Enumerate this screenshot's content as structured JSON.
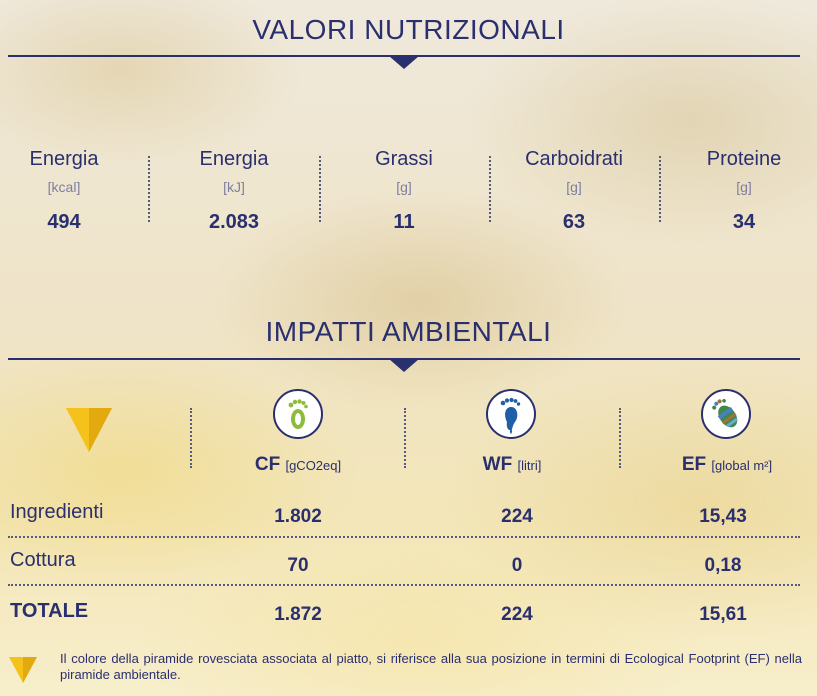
{
  "nutrition": {
    "title": "VALORI NUTRIZIONALI",
    "items": [
      {
        "label": "Energia",
        "unit": "[kcal]",
        "value": "494"
      },
      {
        "label": "Energia",
        "unit": "[kJ]",
        "value": "2.083"
      },
      {
        "label": "Grassi",
        "unit": "[g]",
        "value": "11"
      },
      {
        "label": "Carboidrati",
        "unit": "[g]",
        "value": "63"
      },
      {
        "label": "Proteine",
        "unit": "[g]",
        "value": "34"
      }
    ]
  },
  "impact": {
    "title": "IMPATTI AMBIENTALI",
    "pyramid_color": "#f5c21b",
    "columns": [
      {
        "abbr": "CF",
        "unit": "[gCO2eq]",
        "icon": "carbon-footprint-icon"
      },
      {
        "abbr": "WF",
        "unit": "[litri]",
        "icon": "water-footprint-icon"
      },
      {
        "abbr": "EF",
        "unit": "[global m²]",
        "icon": "ecological-footprint-icon"
      }
    ],
    "rows": [
      {
        "label": "Ingredienti",
        "values": [
          "1.802",
          "224",
          "15,43"
        ]
      },
      {
        "label": "Cottura",
        "values": [
          "70",
          "0",
          "0,18"
        ]
      },
      {
        "label": "TOTALE",
        "values": [
          "1.872",
          "224",
          "15,61"
        ]
      }
    ]
  },
  "footnote": "Il colore della piramide rovesciata associata al piatto, si riferisce alla sua posizione in termini di Ecological Footprint (EF) nella piramide ambientale."
}
